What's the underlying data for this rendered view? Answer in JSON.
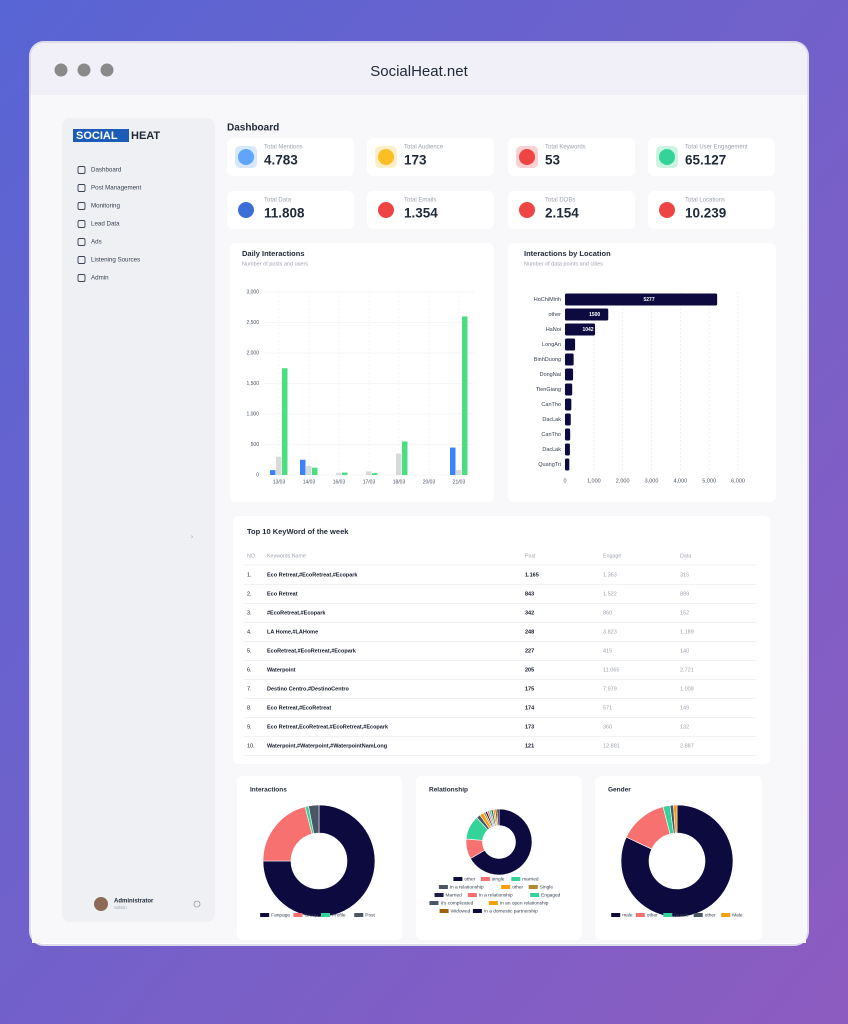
{
  "window": {
    "title": "SocialHeat.net"
  },
  "sidebar": {
    "logo": [
      "SOCIAL",
      "HEAT"
    ],
    "menu": [
      "Dashboard",
      "Post Management",
      "Monitoring",
      "Lead Data",
      "Ads",
      "Listening Sources",
      "Admin"
    ],
    "user": {
      "name": "Administrator",
      "role": "Admin"
    }
  },
  "page_title": "Dashboard",
  "stats": [
    {
      "label": "Total Mentions",
      "value": "4.783",
      "color": "#60a5fa"
    },
    {
      "label": "Total Audience",
      "value": "173",
      "color": "#fbbf24"
    },
    {
      "label": "Total Keywords",
      "value": "53",
      "color": "#ef4444"
    },
    {
      "label": "Total User Engagement",
      "value": "65.127",
      "color": "#34d399"
    },
    {
      "label": "Total Data",
      "value": "11.808",
      "color": "#3b6fd8"
    },
    {
      "label": "Total Emails",
      "value": "1.354",
      "color": "#ef4444"
    },
    {
      "label": "Total DOBs",
      "value": "2.154",
      "color": "#ef4444"
    },
    {
      "label": "Total Locations",
      "value": "10.239",
      "color": "#ef4444"
    }
  ],
  "chart_data": [
    {
      "type": "bar",
      "title": "Daily Interactions",
      "subtitle": "Number of posts and users",
      "categories": [
        "13/03",
        "14/03",
        "16/03",
        "17/03",
        "18/03",
        "20/03",
        "21/03"
      ],
      "series": [
        {
          "color": "#3b82f6",
          "values": [
            80,
            250,
            0,
            0,
            0,
            0,
            450
          ]
        },
        {
          "color": "#d9d9d9",
          "values": [
            300,
            150,
            30,
            60,
            350,
            0,
            80
          ]
        },
        {
          "color": "#4ade80",
          "values": [
            1750,
            120,
            40,
            30,
            550,
            0,
            2600
          ]
        }
      ],
      "ylim": [
        0,
        3000
      ],
      "yticks": [
        0,
        500,
        {
          "value": 1000,
          "label": "1,000"
        },
        {
          "value": 1500,
          "label": "1,500"
        },
        {
          "value": 2000,
          "label": "2,000"
        },
        {
          "value": 2500,
          "label": "2,500"
        },
        {
          "value": 3000,
          "label": "3,000"
        }
      ],
      "grid": true
    },
    {
      "type": "hbar",
      "title": "Interactions by Location",
      "subtitle": "Number of data points and cities",
      "categories": [
        "HoChiMinh",
        "other",
        "HaNoi",
        "LongAn",
        "BinhDuong",
        "DongNai",
        "TienGiang",
        "CanTho",
        "DacLak",
        "CanTho",
        "DacLak",
        "QuangTri"
      ],
      "values": [
        5277,
        1500,
        1042,
        350,
        300,
        280,
        250,
        220,
        200,
        180,
        170,
        150
      ],
      "value_labels": [
        "5277",
        "1500",
        "1042",
        null,
        null,
        null,
        null,
        null,
        null,
        null,
        null,
        null
      ],
      "color": "#0c0a3e",
      "xlim": [
        0,
        6000
      ],
      "xticks": [
        0,
        {
          "value": 1000,
          "label": "1,000"
        },
        {
          "value": 2000,
          "label": "2,000"
        },
        {
          "value": 3000,
          "label": "3,000"
        },
        {
          "value": 4000,
          "label": "4,000"
        },
        {
          "value": 5000,
          "label": "5,000"
        },
        {
          "value": 6000,
          "label": "6,000"
        }
      ],
      "grid": true
    },
    {
      "type": "donut",
      "title": "Interactions",
      "categories": [
        "Fanpage",
        "Group",
        "Profile",
        "Post"
      ],
      "values": [
        75,
        21,
        1,
        3
      ],
      "colors": [
        "#0c0a3e",
        "#f87171",
        "#34d399",
        "#4b5563"
      ]
    },
    {
      "type": "donut",
      "title": "Relationship",
      "categories": [
        "other",
        "single",
        "married",
        "in a relationship",
        "other",
        "Single",
        "Married",
        "In a relationship",
        "Engaged",
        "It's complicated",
        "In an open relationship",
        "Widowed",
        "In a domestic partnership"
      ],
      "values": [
        68,
        10,
        12,
        2,
        2,
        1,
        1,
        1,
        1,
        1,
        1,
        1,
        1
      ],
      "colors": [
        "#0c0a3e",
        "#f87171",
        "#34d399",
        "#4b5563",
        "#f59e0b",
        "#b08a2e",
        "#1e1b4b",
        "#f87171",
        "#34d399",
        "#4b5563",
        "#f59e0b",
        "#a16207",
        "#0c0a3e"
      ]
    },
    {
      "type": "donut",
      "title": "Gender",
      "categories": [
        "male",
        "other",
        "female",
        "other",
        "Male"
      ],
      "values": [
        82,
        14,
        2,
        1,
        1
      ],
      "colors": [
        "#0c0a3e",
        "#f87171",
        "#34d399",
        "#4b5563",
        "#f59e0b"
      ]
    }
  ],
  "table": {
    "title": "Top 10 KeyWord of the week",
    "columns": [
      "NO.",
      "Keywords Name",
      "Post",
      "Engage",
      "Data"
    ],
    "rows": [
      [
        "1.",
        "Eco Retreat,#EcoRetreat,#Ecopark",
        "1.165",
        "1.363",
        "315"
      ],
      [
        "2.",
        "Eco Retreat",
        "843",
        "1.522",
        "899"
      ],
      [
        "3.",
        "#EcoRetreat,#Ecopark",
        "342",
        "860",
        "152"
      ],
      [
        "4.",
        "LA Home,#LAHome",
        "248",
        "3.823",
        "1.189"
      ],
      [
        "5.",
        "EcoRetreat,#EcoRetreat,#Ecopark",
        "227",
        "415",
        "140"
      ],
      [
        "6.",
        "Waterpoint",
        "205",
        "11.065",
        "2.721"
      ],
      [
        "7.",
        "Destino Centro,#DestinoCentro",
        "175",
        "7.979",
        "1.008"
      ],
      [
        "8.",
        "Eco Retreat,#EcoRetreat",
        "174",
        "571",
        "149"
      ],
      [
        "9.",
        "Eco Retreat,EcoRetreat,#EcoRetreat,#Ecopark",
        "173",
        "360",
        "132"
      ],
      [
        "10.",
        "Waterpoint,#Waterpoint,#WaterpointNamLong",
        "121",
        "12.881",
        "2.887"
      ]
    ]
  }
}
